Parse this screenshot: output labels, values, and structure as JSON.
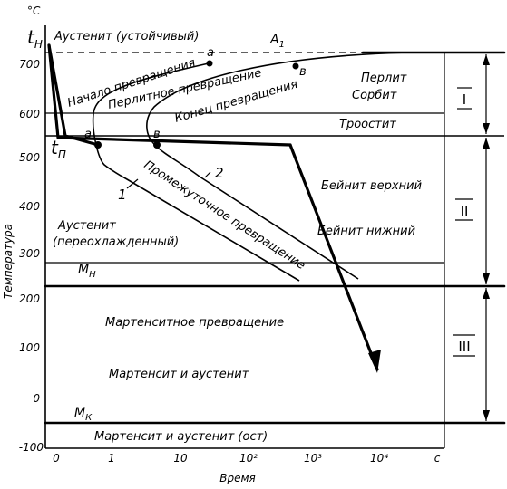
{
  "chart_data": {
    "type": "diagram",
    "y_unit": "°C",
    "x_unit": "с",
    "xlabel": "Время",
    "ylabel": "Температура",
    "y_ticks": [
      "-100",
      "0",
      "100",
      "200",
      "300",
      "400",
      "500",
      "600",
      "700"
    ],
    "x_ticks": [
      "0",
      "1",
      "10",
      "10²",
      "10³",
      "10⁴"
    ],
    "ylim": [
      -100,
      760
    ],
    "special_temps": {
      "t_n_high": "t",
      "t_n_high_sub": "Н",
      "t_p": "t",
      "t_p_sub": "П",
      "A1": "A",
      "A1_sub": "1",
      "Mn": "M",
      "Mn_sub": "Н",
      "Mk": "M",
      "Mk_sub": "К"
    },
    "temperatures": {
      "t_n_high": 760,
      "A1": 725,
      "t_p": 525,
      "Mn": 240,
      "Mk": -50
    },
    "regions": {
      "austenite_stable": "Аустенит (устойчивый)",
      "start": "Начало превращения",
      "pearlite_transformation": "Перлитное превращение",
      "end": "Конец превращения",
      "pearlite": "Перлит",
      "sorbite": "Сорбит",
      "troostite": "Троостит",
      "bainite_upper": "Бейнит верхний",
      "bainite_lower": "Бейнит нижний",
      "austenite_supercooled_1": "Аустенит",
      "austenite_supercooled_2": "(переохлажденный)",
      "intermediate": "Промежуточное превращение",
      "martensite_transformation": "Мартенситное превращение",
      "martensite_austenite": "Мартенсит и аустенит",
      "martensite_austenite_rest": "Мартенсит и аустенит (ост)"
    },
    "point_labels": {
      "a": "a",
      "b": "в",
      "curve1": "1",
      "curve2": "2"
    },
    "zones": [
      "I",
      "II",
      "III"
    ]
  }
}
